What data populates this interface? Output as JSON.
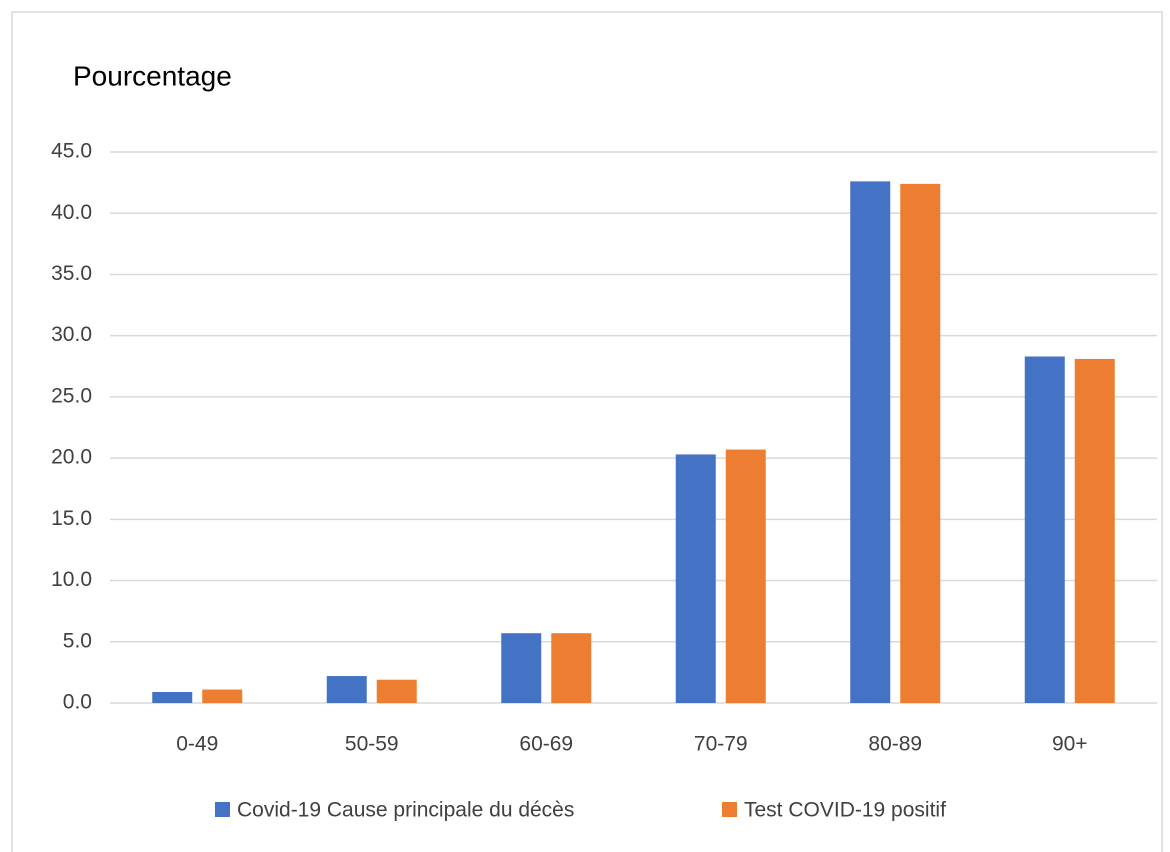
{
  "chart_data": {
    "type": "bar",
    "title": "Pourcentage",
    "categories": [
      "0-49",
      "50-59",
      "60-69",
      "70-79",
      "80-89",
      "90+"
    ],
    "series": [
      {
        "name": "Covid-19 Cause principale du décès",
        "color": "#4472c4",
        "values": [
          0.9,
          2.2,
          5.7,
          20.3,
          42.6,
          28.3
        ]
      },
      {
        "name": "Test COVID-19 positif",
        "color": "#ed7d31",
        "values": [
          1.1,
          1.9,
          5.7,
          20.7,
          42.4,
          28.1
        ]
      }
    ],
    "ylim": [
      0,
      45
    ],
    "yticks": [
      {
        "value": 0,
        "label": "0.0"
      },
      {
        "value": 5,
        "label": "5.0"
      },
      {
        "value": 10,
        "label": "10.0"
      },
      {
        "value": 15,
        "label": "15.0"
      },
      {
        "value": 20,
        "label": "20.0"
      },
      {
        "value": 25,
        "label": "25.0"
      },
      {
        "value": 30,
        "label": "30.0"
      },
      {
        "value": 35,
        "label": "35.0"
      },
      {
        "value": 40,
        "label": "40.0"
      },
      {
        "value": 45,
        "label": "45.0"
      }
    ],
    "grid": true,
    "legend": "bottom"
  }
}
